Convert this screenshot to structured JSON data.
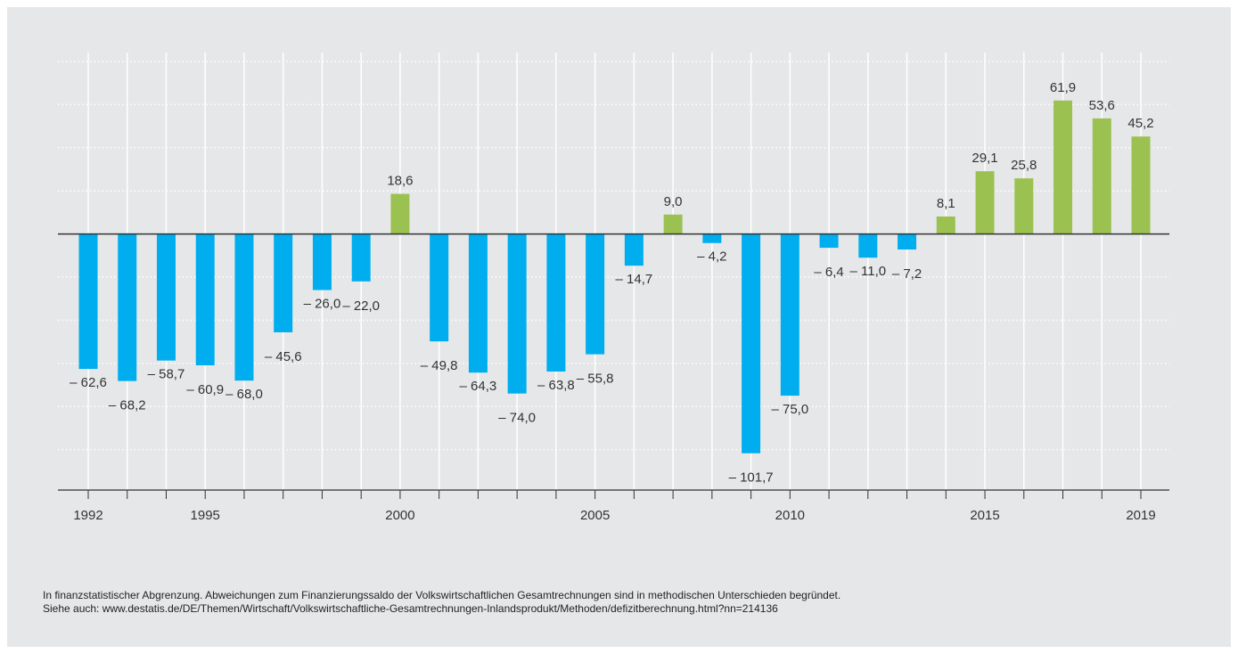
{
  "chart_data": {
    "type": "bar",
    "categories": [
      "1992",
      null,
      null,
      "1995",
      null,
      null,
      null,
      null,
      "2000",
      null,
      null,
      null,
      null,
      "2005",
      null,
      null,
      null,
      null,
      "2010",
      null,
      null,
      null,
      null,
      "2015",
      null,
      null,
      null,
      "2019"
    ],
    "values": [
      -62.6,
      -68.2,
      -58.7,
      -60.9,
      -68.0,
      -45.6,
      -26.0,
      -22.0,
      18.6,
      -49.8,
      -64.3,
      -74.0,
      -63.8,
      -55.8,
      -14.7,
      9.0,
      -4.2,
      -101.7,
      -75.0,
      -6.4,
      -11.0,
      -7.2,
      8.1,
      29.1,
      25.8,
      61.9,
      53.6,
      45.2
    ],
    "value_labels": [
      "– 62,6",
      "– 68,2",
      "– 58,7",
      "– 60,9",
      "– 68,0",
      "– 45,6",
      "– 26,0",
      "– 22,0",
      "18,6",
      "– 49,8",
      "– 64,3",
      "– 74,0",
      "– 63,8",
      "– 55,8",
      "– 14,7",
      "9,0",
      "– 4,2",
      "– 101,7",
      "– 75,0",
      "– 6,4",
      "– 11,0",
      "– 7,2",
      "8,1",
      "29,1",
      "25,8",
      "61,9",
      "53,6",
      "45,2"
    ],
    "colors": {
      "negative": "#00aeef",
      "positive": "#9bc151"
    },
    "ylim": [
      -120,
      80
    ],
    "yticks": [
      80,
      60,
      40,
      20,
      0,
      -20,
      -40,
      -60,
      -80,
      -100
    ],
    "ytick_labels_shown": false,
    "grid": true,
    "notes": [
      "In finanzstatistischer Abgrenzung. Abweichungen zum Finanzierungssaldo der Volkswirtschaftlichen Gesamtrechnungen sind in methodischen Unterschieden begründet.",
      "Siehe auch: www.destatis.de/DE/Themen/Wirtschaft/Volkswirtschaftliche-Gesamtrechnungen-Inlandsprodukt/Methoden/defizitberechnung.html?nn=214136"
    ]
  }
}
